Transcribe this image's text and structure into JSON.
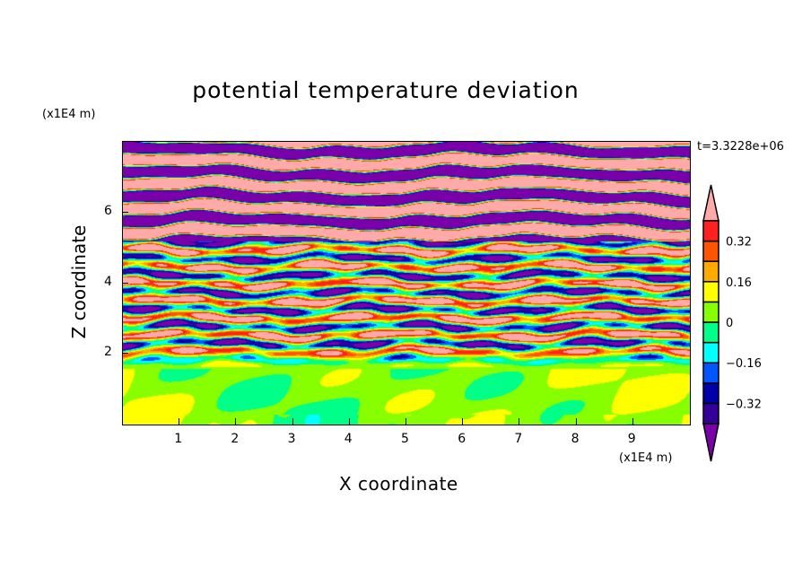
{
  "chart_data": {
    "type": "heatmap",
    "title": "potential temperature deviation",
    "xlabel": "X coordinate",
    "ylabel": "Z coordinate",
    "x_unit": "(x1E4 m)",
    "y_unit": "(x1E4 m)",
    "time_label": "t=3.3228e+06",
    "xlim": [
      0,
      10
    ],
    "ylim": [
      0,
      8
    ],
    "x_ticks": [
      "1",
      "2",
      "3",
      "4",
      "5",
      "6",
      "7",
      "8",
      "9"
    ],
    "y_ticks": [
      "2",
      "4",
      "6"
    ],
    "colorbar": {
      "levels": [
        -0.4,
        -0.32,
        -0.24,
        -0.16,
        -0.08,
        0,
        0.08,
        0.16,
        0.24,
        0.32,
        0.4
      ],
      "labels": [
        "0.32",
        "0.16",
        "0",
        "−0.16",
        "−0.32"
      ],
      "label_values": [
        0.32,
        0.16,
        0,
        -0.16,
        -0.32
      ],
      "colors": [
        "#7a00aa",
        "#330099",
        "#0000aa",
        "#0055ff",
        "#00ffff",
        "#00ff88",
        "#88ff00",
        "#ffff00",
        "#ffaa00",
        "#ff5500",
        "#ff2020",
        "#ffaaaa"
      ],
      "extend": "both"
    },
    "description_regions": {
      "z_below_2": "values mostly 0 to 0.08",
      "z_2_to_5": "layered oscillations across full range",
      "z_above_5": "alternating bands beyond ±0.4"
    }
  }
}
